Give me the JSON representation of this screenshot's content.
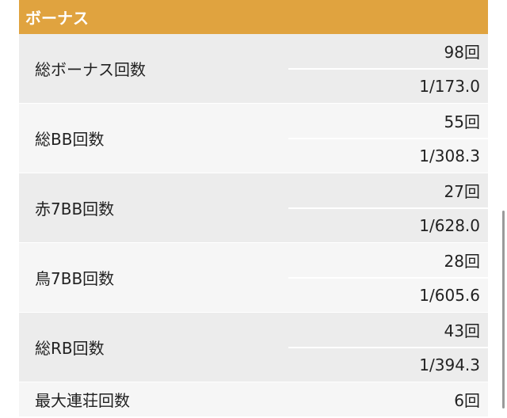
{
  "section": {
    "title": "ボーナス"
  },
  "rows": [
    {
      "label": "総ボーナス回数",
      "count": "98回",
      "probability": "1/173.0"
    },
    {
      "label": "総BB回数",
      "count": "55回",
      "probability": "1/308.3"
    },
    {
      "label": "赤7BB回数",
      "count": "27回",
      "probability": "1/628.0"
    },
    {
      "label": "鳥7BB回数",
      "count": "28回",
      "probability": "1/605.6"
    },
    {
      "label": "総RB回数",
      "count": "43回",
      "probability": "1/394.3"
    },
    {
      "label": "最大連荘回数",
      "count": "6回"
    }
  ],
  "colors": {
    "header_bg": "#e0a33f",
    "header_text": "#ffffff",
    "row_odd": "#ececec",
    "row_even": "#f6f6f6"
  }
}
